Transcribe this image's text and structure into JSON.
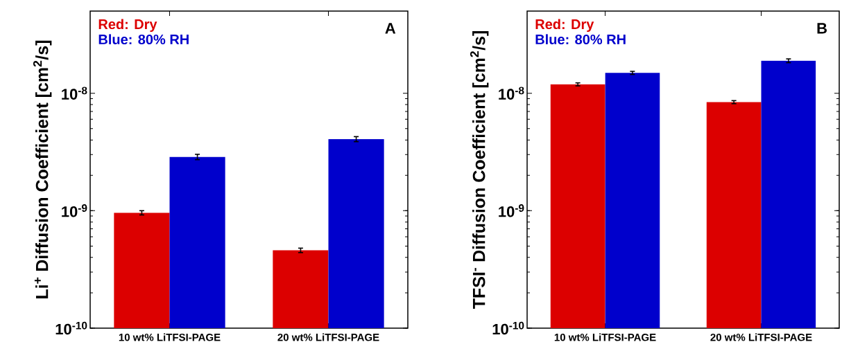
{
  "chart_data": [
    {
      "type": "bar",
      "ylabel": "Li$^{+}$ Diffusion Coefficient [cm$^{2}$/s]",
      "categories": [
        "10 wt% LiTFSI-PAGE",
        "20 wt% LiTFSI-PAGE"
      ],
      "log": "y",
      "ylim": [
        1e-10,
        5e-08
      ],
      "yticks": [
        {
          "value": 1e-10,
          "label": "10$^{-10}$"
        },
        {
          "value": 1e-09,
          "label": "10$^{-9}$"
        },
        {
          "value": 1e-08,
          "label": "10$^{-8}$"
        }
      ],
      "legend": "top left",
      "annotations": [
        "A"
      ],
      "series": [
        {
          "name": "Red: Dry",
          "color": "#dc0000",
          "values": [
            9.6e-10,
            4.6e-10
          ],
          "errors": [
            4e-11,
            2e-11
          ]
        },
        {
          "name": "Blue: 80% RH",
          "color": "#0000cc",
          "values": [
            2.87e-09,
            4.07e-09
          ],
          "errors": [
            1.5e-10,
            2e-10
          ]
        }
      ]
    },
    {
      "type": "bar",
      "ylabel": "TFSI$^{-}$ Diffusion Coefficient [cm$^{2}$/s]",
      "categories": [
        "10 wt% LiTFSI-PAGE",
        "20 wt% LiTFSI-PAGE"
      ],
      "log": "y",
      "ylim": [
        1e-10,
        5e-08
      ],
      "yticks": [
        {
          "value": 1e-10,
          "label": "10$^{-10}$"
        },
        {
          "value": 1e-09,
          "label": "10$^{-9}$"
        },
        {
          "value": 1e-08,
          "label": "10$^{-8}$"
        }
      ],
      "legend": "top left",
      "annotations": [
        "B"
      ],
      "series": [
        {
          "name": "Red: Dry",
          "color": "#dc0000",
          "values": [
            1.19e-08,
            8.4e-09
          ],
          "errors": [
            3.5e-10,
            2.5e-10
          ]
        },
        {
          "name": "Blue: 80% RH",
          "color": "#0000cc",
          "values": [
            1.49e-08,
            1.89e-08
          ],
          "errors": [
            4.5e-10,
            7e-10
          ]
        }
      ]
    }
  ]
}
